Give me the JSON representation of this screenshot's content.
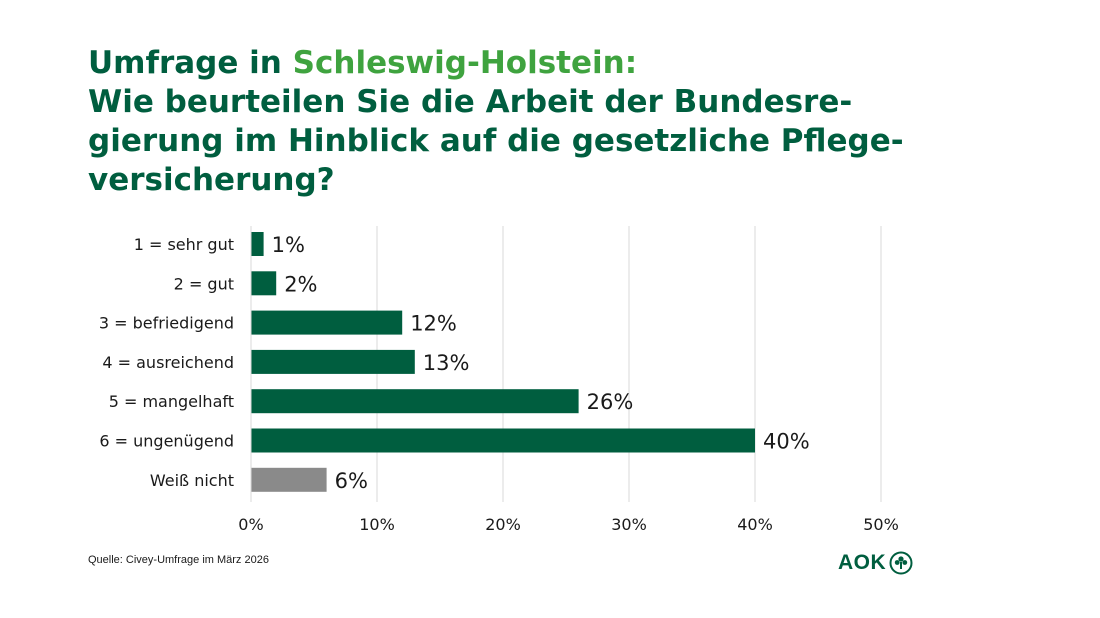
{
  "title": {
    "prefix": "Umfrage in ",
    "highlight": "Schleswig-Holstein:",
    "line2": "Wie beurteilen Sie die Arbeit der Bundesre-",
    "line3": "gierung im Hinblick auf die gesetzliche Pflege-",
    "line4": "versicherung?"
  },
  "source": "Quelle: Civey-Umfrage im März 2026",
  "logo": {
    "text": "AOK",
    "icon": "aok-tree-icon"
  },
  "colors": {
    "title": "#005e3f",
    "accent": "#3fa33f",
    "bar": "#005e3f",
    "bar_muted": "#8a8a8a",
    "grid": "#d9d9d9"
  },
  "chart_data": {
    "type": "bar",
    "orientation": "horizontal",
    "categories": [
      "1 = sehr gut",
      "2 = gut",
      "3 = befriedigend",
      "4 = ausreichend",
      "5 = mangelhaft",
      "6 = ungenügend",
      "Weiß nicht"
    ],
    "values": [
      1,
      2,
      12,
      13,
      26,
      40,
      6
    ],
    "value_labels": [
      "1%",
      "2%",
      "12%",
      "13%",
      "26%",
      "40%",
      "6%"
    ],
    "muted": [
      false,
      false,
      false,
      false,
      false,
      false,
      true
    ],
    "xlim": [
      0,
      50
    ],
    "xticks": [
      0,
      10,
      20,
      30,
      40,
      50
    ],
    "xtick_labels": [
      "0%",
      "10%",
      "20%",
      "30%",
      "40%",
      "50%"
    ],
    "grid": "vertical"
  }
}
